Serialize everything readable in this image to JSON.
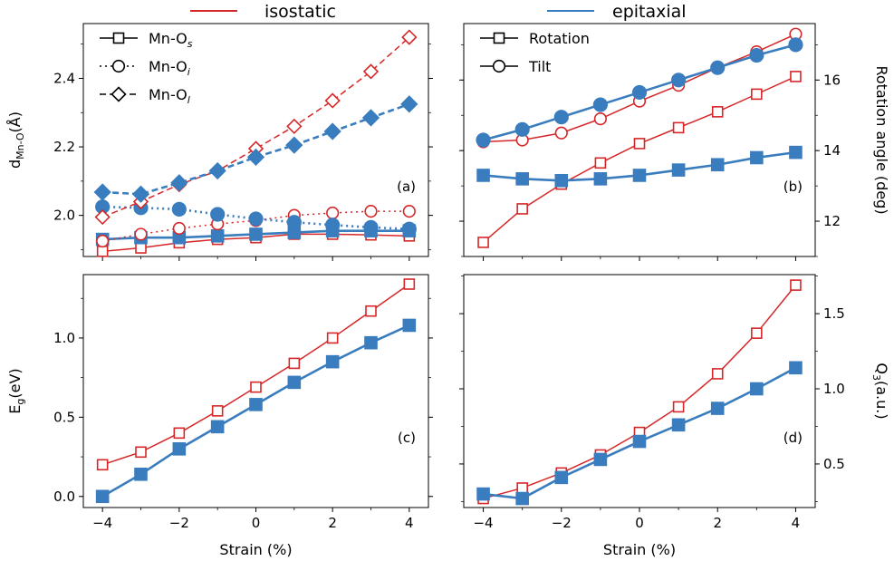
{
  "colors": {
    "isostatic": "#d62728",
    "epitaxial": "#3a7dbf"
  },
  "legend_top": {
    "isostatic": "isostatic",
    "epitaxial": "epitaxial"
  },
  "x_ticks": [
    "−4",
    "−2",
    "0",
    "2",
    "4"
  ],
  "xlabel": "Strain (%)",
  "chart_data": [
    {
      "panel": "(a)",
      "type": "line",
      "ylabel": "d",
      "ylabel_sub": "Mn-O",
      "ylabel_unit": "(Å)",
      "ylim": [
        1.88,
        2.56
      ],
      "y_ticks": [
        "2.0",
        "2.2",
        "2.4"
      ],
      "legend": [
        {
          "label": "Mn-O",
          "sub": "s",
          "marker": "square",
          "dash": "solid"
        },
        {
          "label": "Mn-O",
          "sub": "i",
          "marker": "circle",
          "dash": "dotted"
        },
        {
          "label": "Mn-O",
          "sub": "l",
          "marker": "diamond",
          "dash": "dashed"
        }
      ],
      "x": [
        -4,
        -3,
        -2,
        -1,
        0,
        1,
        2,
        3,
        4
      ],
      "series": [
        {
          "group": "isostatic",
          "marker": "square",
          "dash": "solid",
          "values": [
            1.895,
            1.905,
            1.92,
            1.93,
            1.935,
            1.945,
            1.945,
            1.943,
            1.94
          ]
        },
        {
          "group": "epitaxial",
          "marker": "square",
          "dash": "solid",
          "values": [
            1.93,
            1.935,
            1.935,
            1.94,
            1.945,
            1.95,
            1.955,
            1.955,
            1.955
          ]
        },
        {
          "group": "isostatic",
          "marker": "circle",
          "dash": "dotted",
          "values": [
            1.925,
            1.945,
            1.962,
            1.975,
            1.985,
            2.0,
            2.007,
            2.012,
            2.012
          ]
        },
        {
          "group": "epitaxial",
          "marker": "circle",
          "dash": "dotted",
          "values": [
            2.025,
            2.022,
            2.018,
            2.003,
            1.99,
            1.98,
            1.972,
            1.965,
            1.96
          ]
        },
        {
          "group": "isostatic",
          "marker": "diamond",
          "dash": "dashed",
          "values": [
            1.995,
            2.04,
            2.09,
            2.13,
            2.195,
            2.26,
            2.335,
            2.42,
            2.52
          ]
        },
        {
          "group": "epitaxial",
          "marker": "diamond",
          "dash": "dashed",
          "values": [
            2.068,
            2.062,
            2.095,
            2.13,
            2.17,
            2.205,
            2.245,
            2.285,
            2.325
          ]
        }
      ]
    },
    {
      "panel": "(b)",
      "type": "line",
      "ylabel": "Rotation angle (deg)",
      "ylim": [
        11.0,
        17.6
      ],
      "y_ticks": [
        "12",
        "14",
        "16"
      ],
      "legend": [
        {
          "label": "Rotation",
          "marker": "square"
        },
        {
          "label": "Tilt",
          "marker": "circle"
        }
      ],
      "x": [
        -4,
        -3,
        -2,
        -1,
        0,
        1,
        2,
        3,
        4
      ],
      "series": [
        {
          "group": "isostatic",
          "marker": "square",
          "values": [
            11.4,
            12.35,
            13.05,
            13.65,
            14.2,
            14.65,
            15.1,
            15.6,
            16.1
          ]
        },
        {
          "group": "epitaxial",
          "marker": "square",
          "values": [
            13.3,
            13.2,
            13.15,
            13.2,
            13.3,
            13.45,
            13.6,
            13.8,
            13.95
          ]
        },
        {
          "group": "isostatic",
          "marker": "circle",
          "values": [
            14.25,
            14.3,
            14.5,
            14.9,
            15.4,
            15.85,
            16.35,
            16.8,
            17.3
          ]
        },
        {
          "group": "epitaxial",
          "marker": "circle",
          "values": [
            14.3,
            14.6,
            14.95,
            15.3,
            15.65,
            16.0,
            16.35,
            16.7,
            17.0
          ]
        }
      ]
    },
    {
      "panel": "(c)",
      "type": "line",
      "ylabel": "E",
      "ylabel_sub": "g",
      "ylabel_unit": "(eV)",
      "ylim": [
        -0.07,
        1.4
      ],
      "y_ticks": [
        "0.0",
        "0.5",
        "1.0"
      ],
      "x": [
        -4,
        -3,
        -2,
        -1,
        0,
        1,
        2,
        3,
        4
      ],
      "series": [
        {
          "group": "isostatic",
          "marker": "square",
          "values": [
            0.2,
            0.28,
            0.4,
            0.54,
            0.69,
            0.84,
            1.0,
            1.17,
            1.34
          ]
        },
        {
          "group": "epitaxial",
          "marker": "square",
          "values": [
            0.0,
            0.14,
            0.3,
            0.44,
            0.58,
            0.72,
            0.85,
            0.97,
            1.08
          ]
        }
      ]
    },
    {
      "panel": "(d)",
      "type": "line",
      "ylabel": "Q",
      "ylabel_sub": "3",
      "ylabel_unit": "(a.u.)",
      "ylim": [
        0.21,
        1.76
      ],
      "y_ticks": [
        "0.5",
        "1.0",
        "1.5"
      ],
      "x": [
        -4,
        -3,
        -2,
        -1,
        0,
        1,
        2,
        3,
        4
      ],
      "series": [
        {
          "group": "isostatic",
          "marker": "square",
          "values": [
            0.27,
            0.34,
            0.44,
            0.56,
            0.71,
            0.88,
            1.1,
            1.37,
            1.69
          ]
        },
        {
          "group": "epitaxial",
          "marker": "square",
          "values": [
            0.3,
            0.27,
            0.41,
            0.53,
            0.65,
            0.76,
            0.87,
            1.0,
            1.14
          ]
        }
      ]
    }
  ]
}
